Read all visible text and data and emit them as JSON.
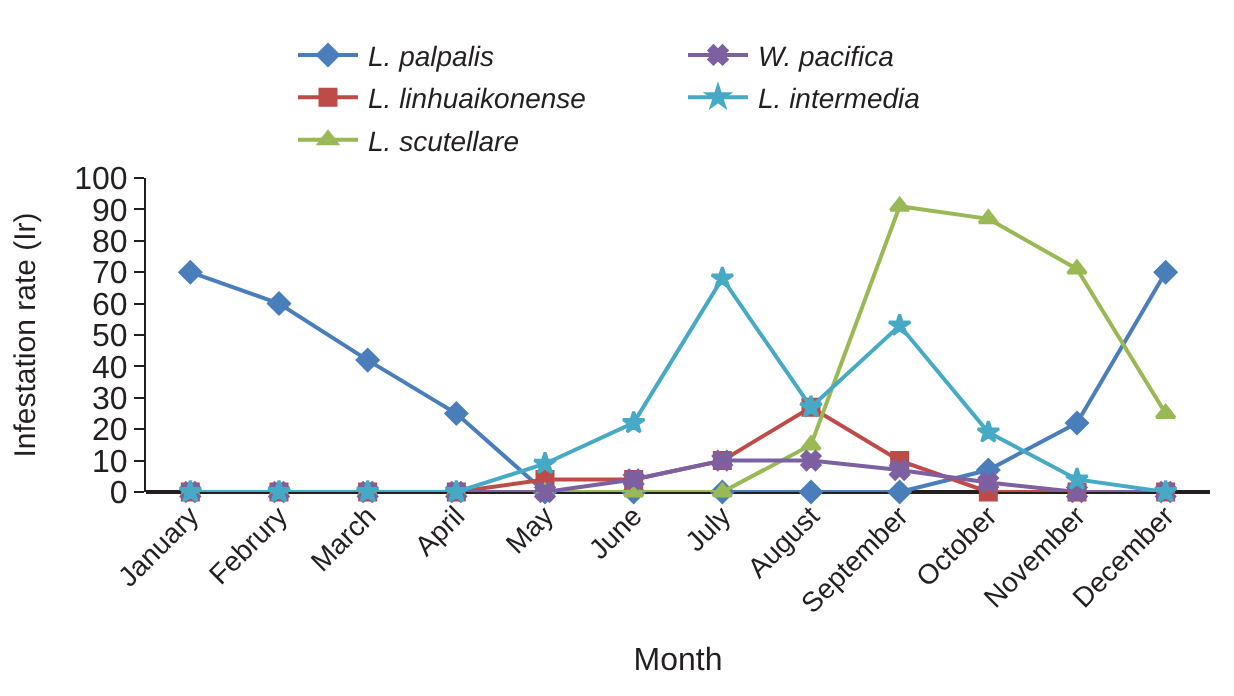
{
  "chart_data": {
    "type": "line",
    "xlabel": "Month",
    "ylabel": "Infestation rate (Ir)",
    "categories": [
      "January",
      "Februry",
      "March",
      "April",
      "May",
      "June",
      "July",
      "August",
      "September",
      "October",
      "November",
      "December"
    ],
    "series": [
      {
        "name": "L. palpalis",
        "color": "#4a7ebb",
        "marker": "diamond",
        "values": [
          70,
          60,
          42,
          25,
          0,
          0,
          0,
          0,
          0,
          7,
          22,
          70
        ]
      },
      {
        "name": "L. linhuaikonense",
        "color": "#be4b48",
        "marker": "square",
        "values": [
          0,
          0,
          0,
          0,
          4,
          4,
          10,
          27,
          10,
          0,
          0,
          0
        ]
      },
      {
        "name": "L. scutellare",
        "color": "#98b954",
        "marker": "triangle",
        "values": [
          0,
          0,
          0,
          0,
          0,
          0,
          0,
          15,
          91,
          87,
          71,
          25
        ]
      },
      {
        "name": "W. pacifica",
        "color": "#7d60a0",
        "marker": "cross",
        "values": [
          0,
          0,
          0,
          0,
          0,
          4,
          10,
          10,
          7,
          3,
          0,
          0
        ]
      },
      {
        "name": "L. intermedia",
        "color": "#46aac5",
        "marker": "star",
        "values": [
          0,
          0,
          0,
          0,
          9,
          22,
          68,
          27,
          53,
          19,
          4,
          0
        ]
      }
    ],
    "ylim": [
      0,
      100
    ],
    "yticks": [
      0,
      10,
      20,
      30,
      40,
      50,
      60,
      70,
      80,
      90,
      100
    ],
    "legend": "top",
    "line_style": "solid"
  }
}
